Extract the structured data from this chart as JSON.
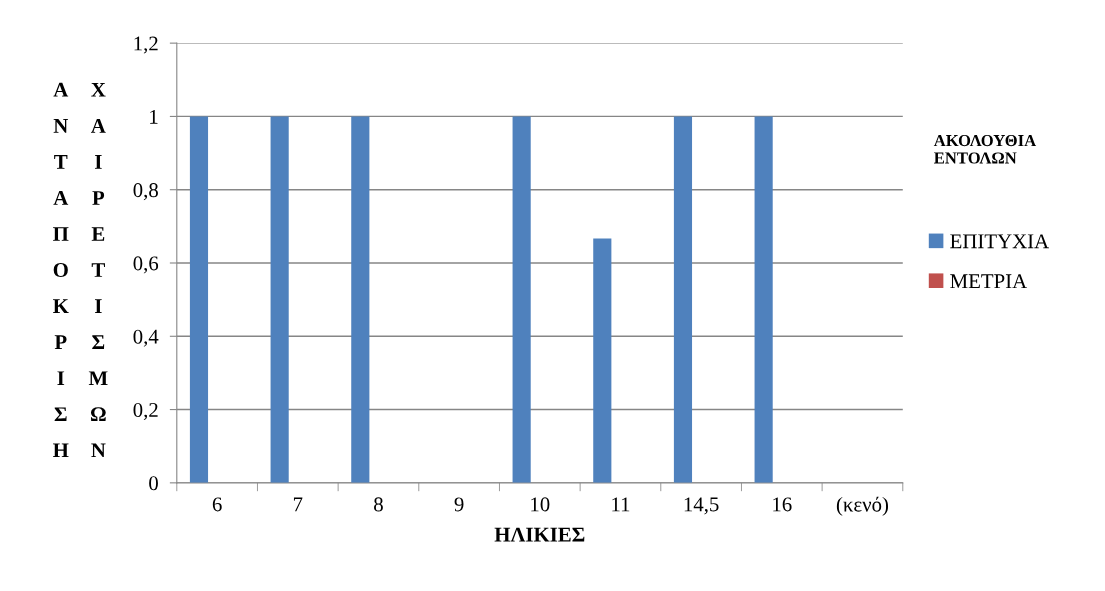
{
  "chart_data": {
    "type": "bar",
    "xlabel": "ΗΛΙΚΙΕΣ",
    "ylabel": "ΑΝΤΑΠΟΚΡΙΣΗ ΧΑΙΡΕΤΙΣΜΩΝ",
    "legend_title": "ΑΚΟΛΟΥΘΙΑ ΕΝΤΟΛΩΝ",
    "categories": [
      "6",
      "7",
      "8",
      "9",
      "10",
      "11",
      "14,5",
      "16",
      "(κενό)"
    ],
    "series": [
      {
        "name": "ΕΠΙΤΥΧΙΑ",
        "color": "#4f81bd",
        "values": [
          1,
          1,
          1,
          null,
          1,
          0.667,
          1,
          1,
          null
        ]
      },
      {
        "name": "ΜΕΤΡΙΑ",
        "color": "#c0504d",
        "values": [
          null,
          null,
          null,
          null,
          null,
          null,
          null,
          null,
          null
        ]
      }
    ],
    "ylim": [
      0,
      1.2
    ],
    "yticks": [
      0,
      {
        "value": 0.2,
        "label": "0,2"
      },
      {
        "value": 0.4,
        "label": "0,4"
      },
      {
        "value": 0.6,
        "label": "0,6"
      },
      {
        "value": 0.8,
        "label": "0,8"
      },
      1,
      {
        "value": 1.2,
        "label": "1,2"
      }
    ],
    "grid": "y",
    "legend": "right"
  }
}
